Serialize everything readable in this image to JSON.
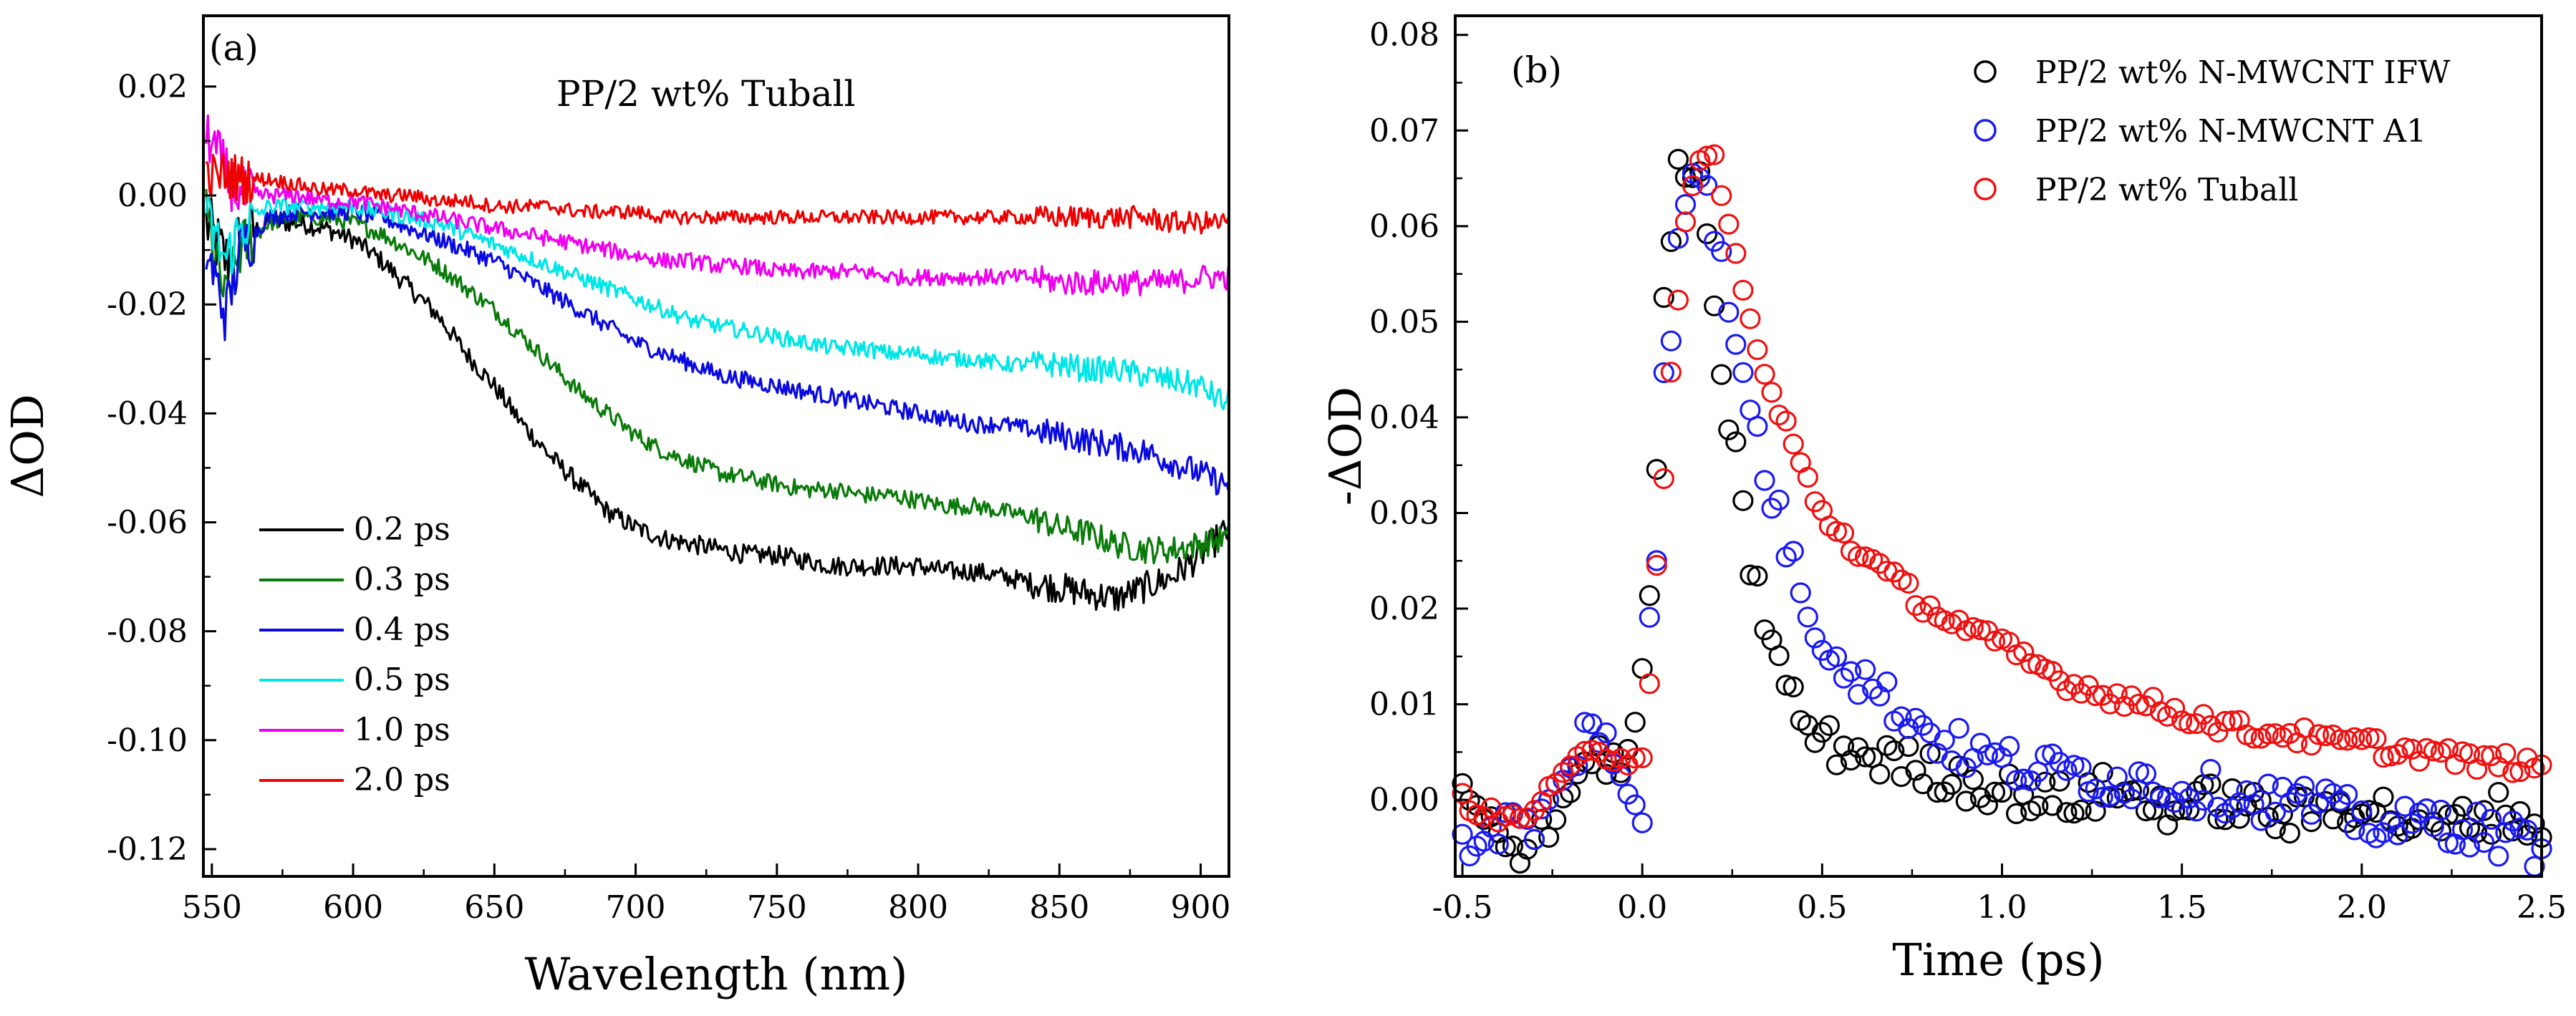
{
  "chart_data": [
    {
      "type": "line",
      "panel_label": "(a)",
      "title": "PP/2 wt% Tuball",
      "xlabel": "Wavelength (nm)",
      "ylabel": "ΔOD",
      "xlim": [
        547,
        910
      ],
      "ylim": [
        -0.125,
        0.033
      ],
      "x_ticks": [
        550,
        600,
        650,
        700,
        750,
        800,
        850,
        900
      ],
      "x_tick_labels": [
        "550",
        "600",
        "650",
        "700",
        "750",
        "800",
        "850",
        "900"
      ],
      "y_ticks": [
        0.02,
        0.0,
        -0.02,
        -0.04,
        -0.06,
        -0.08,
        -0.1,
        -0.12
      ],
      "y_tick_labels": [
        "0.02",
        "0.00",
        "-0.02",
        "-0.04",
        "-0.06",
        "-0.08",
        "-0.10",
        "-0.12"
      ],
      "grid": false,
      "legend_position": "bottom-left",
      "series": [
        {
          "name": "0.2 ps",
          "color": "#000000",
          "x": [
            548,
            555,
            560,
            570,
            580,
            590,
            600,
            610,
            620,
            630,
            640,
            650,
            660,
            670,
            680,
            690,
            700,
            710,
            720,
            730,
            740,
            750,
            760,
            770,
            780,
            790,
            800,
            810,
            820,
            830,
            840,
            850,
            860,
            870,
            880,
            890,
            900,
            908
          ],
          "y": [
            -0.005,
            -0.012,
            -0.008,
            -0.005,
            -0.005,
            -0.006,
            -0.008,
            -0.012,
            -0.017,
            -0.022,
            -0.029,
            -0.035,
            -0.042,
            -0.048,
            -0.053,
            -0.058,
            -0.061,
            -0.063,
            -0.064,
            -0.065,
            -0.066,
            -0.066,
            -0.067,
            -0.068,
            -0.068,
            -0.068,
            -0.068,
            -0.069,
            -0.069,
            -0.07,
            -0.071,
            -0.072,
            -0.073,
            -0.074,
            -0.072,
            -0.07,
            -0.066,
            -0.062
          ]
        },
        {
          "name": "0.3 ps",
          "color": "#0a7a0a",
          "x": [
            548,
            555,
            560,
            570,
            580,
            590,
            600,
            610,
            620,
            630,
            640,
            650,
            660,
            670,
            680,
            690,
            700,
            710,
            720,
            730,
            740,
            750,
            760,
            770,
            780,
            790,
            800,
            810,
            820,
            830,
            840,
            850,
            860,
            870,
            880,
            890,
            900,
            908
          ],
          "y": [
            -0.004,
            -0.02,
            -0.01,
            -0.005,
            -0.004,
            -0.004,
            -0.005,
            -0.007,
            -0.01,
            -0.013,
            -0.017,
            -0.021,
            -0.026,
            -0.031,
            -0.036,
            -0.04,
            -0.044,
            -0.047,
            -0.049,
            -0.051,
            -0.052,
            -0.053,
            -0.054,
            -0.054,
            -0.055,
            -0.055,
            -0.056,
            -0.057,
            -0.057,
            -0.058,
            -0.059,
            -0.061,
            -0.062,
            -0.064,
            -0.065,
            -0.065,
            -0.064,
            -0.063
          ]
        },
        {
          "name": "0.4 ps",
          "color": "#0a0ae0",
          "x": [
            548,
            555,
            560,
            570,
            580,
            590,
            600,
            610,
            620,
            630,
            640,
            650,
            660,
            670,
            680,
            690,
            700,
            710,
            720,
            730,
            740,
            750,
            760,
            770,
            780,
            790,
            800,
            810,
            820,
            830,
            840,
            850,
            860,
            870,
            880,
            890,
            900,
            908
          ],
          "y": [
            -0.01,
            -0.022,
            -0.01,
            -0.004,
            -0.003,
            -0.003,
            -0.003,
            -0.004,
            -0.006,
            -0.008,
            -0.01,
            -0.012,
            -0.015,
            -0.018,
            -0.021,
            -0.024,
            -0.027,
            -0.029,
            -0.031,
            -0.033,
            -0.034,
            -0.035,
            -0.036,
            -0.037,
            -0.038,
            -0.039,
            -0.04,
            -0.041,
            -0.042,
            -0.042,
            -0.043,
            -0.044,
            -0.045,
            -0.046,
            -0.047,
            -0.049,
            -0.051,
            -0.053
          ]
        },
        {
          "name": "0.5 ps",
          "color": "#00e6e6",
          "x": [
            548,
            555,
            560,
            570,
            580,
            590,
            600,
            610,
            620,
            630,
            640,
            650,
            660,
            670,
            680,
            690,
            700,
            710,
            720,
            730,
            740,
            750,
            760,
            770,
            780,
            790,
            800,
            810,
            820,
            830,
            840,
            850,
            860,
            870,
            880,
            890,
            900,
            908
          ],
          "y": [
            -0.004,
            -0.012,
            -0.006,
            -0.002,
            -0.002,
            -0.002,
            -0.002,
            -0.003,
            -0.004,
            -0.005,
            -0.007,
            -0.009,
            -0.011,
            -0.013,
            -0.015,
            -0.017,
            -0.019,
            -0.021,
            -0.023,
            -0.024,
            -0.025,
            -0.026,
            -0.027,
            -0.028,
            -0.028,
            -0.029,
            -0.029,
            -0.03,
            -0.03,
            -0.031,
            -0.031,
            -0.031,
            -0.032,
            -0.032,
            -0.033,
            -0.034,
            -0.035,
            -0.038
          ]
        },
        {
          "name": "1.0 ps",
          "color": "#ee00ee",
          "x": [
            548,
            555,
            560,
            570,
            580,
            590,
            600,
            610,
            620,
            630,
            640,
            650,
            660,
            670,
            680,
            690,
            700,
            710,
            720,
            730,
            740,
            750,
            760,
            770,
            780,
            790,
            800,
            810,
            820,
            830,
            840,
            850,
            860,
            870,
            880,
            890,
            900,
            908
          ],
          "y": [
            0.012,
            0.004,
            0.0,
            0.0,
            0.0,
            -0.001,
            -0.001,
            -0.002,
            -0.003,
            -0.004,
            -0.005,
            -0.006,
            -0.007,
            -0.008,
            -0.009,
            -0.01,
            -0.011,
            -0.012,
            -0.012,
            -0.013,
            -0.013,
            -0.014,
            -0.014,
            -0.014,
            -0.014,
            -0.015,
            -0.015,
            -0.015,
            -0.015,
            -0.015,
            -0.015,
            -0.016,
            -0.016,
            -0.016,
            -0.016,
            -0.016,
            -0.015,
            -0.015
          ]
        },
        {
          "name": "2.0 ps",
          "color": "#ee0000",
          "x": [
            548,
            555,
            560,
            570,
            580,
            590,
            600,
            610,
            620,
            630,
            640,
            650,
            660,
            670,
            680,
            690,
            700,
            710,
            720,
            730,
            740,
            750,
            760,
            770,
            780,
            790,
            800,
            810,
            820,
            830,
            840,
            850,
            860,
            870,
            880,
            890,
            900,
            908
          ],
          "y": [
            0.003,
            0.004,
            0.003,
            0.003,
            0.002,
            0.001,
            0.001,
            0.0,
            0.0,
            -0.001,
            -0.001,
            -0.002,
            -0.002,
            -0.002,
            -0.003,
            -0.003,
            -0.003,
            -0.004,
            -0.004,
            -0.004,
            -0.004,
            -0.004,
            -0.004,
            -0.004,
            -0.004,
            -0.004,
            -0.004,
            -0.004,
            -0.004,
            -0.004,
            -0.004,
            -0.004,
            -0.004,
            -0.004,
            -0.004,
            -0.005,
            -0.005,
            -0.005
          ]
        }
      ]
    },
    {
      "type": "scatter",
      "panel_label": "(b)",
      "xlabel": "Time (ps)",
      "ylabel": "-ΔOD",
      "xlim": [
        -0.52,
        2.5
      ],
      "ylim": [
        -0.008,
        0.082
      ],
      "x_ticks": [
        -0.5,
        0.0,
        0.5,
        1.0,
        1.5,
        2.0,
        2.5
      ],
      "x_tick_labels": [
        "-0.5",
        "0.0",
        "0.5",
        "1.0",
        "1.5",
        "2.0",
        "2.5"
      ],
      "y_ticks": [
        0.0,
        0.01,
        0.02,
        0.03,
        0.04,
        0.05,
        0.06,
        0.07,
        0.08
      ],
      "y_tick_labels": [
        "0.00",
        "0.01",
        "0.02",
        "0.03",
        "0.04",
        "0.05",
        "0.06",
        "0.07",
        "0.08"
      ],
      "grid": false,
      "legend_position": "top-right",
      "series": [
        {
          "name": "PP/2 wt% N-MWCNT IFW",
          "color": "#000000",
          "x": [
            -0.5,
            -0.45,
            -0.4,
            -0.35,
            -0.3,
            -0.25,
            -0.2,
            -0.15,
            -0.1,
            -0.05,
            0.0,
            0.02,
            0.04,
            0.06,
            0.08,
            0.1,
            0.12,
            0.14,
            0.16,
            0.18,
            0.2,
            0.22,
            0.24,
            0.26,
            0.28,
            0.3,
            0.32,
            0.35,
            0.4,
            0.45,
            0.5,
            0.6,
            0.7,
            0.8,
            0.9,
            1.0,
            1.1,
            1.2,
            1.3,
            1.4,
            1.5,
            1.6,
            1.7,
            1.8,
            1.9,
            2.0,
            2.1,
            2.2,
            2.3,
            2.4,
            2.5
          ],
          "y": [
            0.001,
            -0.002,
            -0.004,
            -0.006,
            -0.003,
            -0.002,
            0.001,
            0.005,
            0.004,
            0.003,
            0.012,
            0.023,
            0.034,
            0.051,
            0.058,
            0.067,
            0.066,
            0.065,
            0.064,
            0.058,
            0.05,
            0.045,
            0.04,
            0.036,
            0.03,
            0.025,
            0.023,
            0.017,
            0.012,
            0.008,
            0.006,
            0.005,
            0.004,
            0.003,
            0.002,
            0.001,
            0.0,
            0.0,
            0.001,
            0.0,
            -0.001,
            0.0,
            -0.001,
            -0.002,
            -0.001,
            0.0,
            -0.002,
            -0.003,
            -0.002,
            -0.001,
            -0.003
          ]
        },
        {
          "name": "PP/2 wt% N-MWCNT A1",
          "color": "#1a1aee",
          "x": [
            -0.5,
            -0.45,
            -0.4,
            -0.35,
            -0.3,
            -0.25,
            -0.2,
            -0.15,
            -0.1,
            -0.05,
            0.0,
            0.02,
            0.04,
            0.06,
            0.08,
            0.1,
            0.12,
            0.14,
            0.16,
            0.18,
            0.2,
            0.22,
            0.24,
            0.26,
            0.28,
            0.3,
            0.32,
            0.35,
            0.4,
            0.45,
            0.5,
            0.6,
            0.7,
            0.8,
            0.9,
            1.0,
            1.1,
            1.2,
            1.3,
            1.4,
            1.5,
            1.6,
            1.7,
            1.8,
            1.9,
            2.0,
            2.1,
            2.2,
            2.3,
            2.4,
            2.5
          ],
          "y": [
            -0.005,
            -0.004,
            -0.003,
            -0.002,
            -0.003,
            0.0,
            0.003,
            0.008,
            0.007,
            0.0,
            -0.002,
            0.019,
            0.026,
            0.045,
            0.049,
            0.059,
            0.064,
            0.066,
            0.066,
            0.063,
            0.06,
            0.056,
            0.051,
            0.047,
            0.044,
            0.042,
            0.038,
            0.033,
            0.027,
            0.021,
            0.017,
            0.013,
            0.01,
            0.007,
            0.005,
            0.004,
            0.003,
            0.003,
            0.002,
            0.002,
            0.001,
            0.001,
            0.0,
            0.0,
            -0.001,
            -0.002,
            -0.003,
            -0.002,
            -0.003,
            -0.004,
            -0.005
          ]
        },
        {
          "name": "PP/2 wt% Tuball",
          "color": "#ee1111",
          "x": [
            -0.5,
            -0.45,
            -0.4,
            -0.35,
            -0.3,
            -0.25,
            -0.2,
            -0.15,
            -0.1,
            -0.05,
            0.0,
            0.02,
            0.04,
            0.06,
            0.08,
            0.1,
            0.12,
            0.14,
            0.16,
            0.18,
            0.2,
            0.22,
            0.24,
            0.26,
            0.28,
            0.3,
            0.32,
            0.35,
            0.4,
            0.45,
            0.5,
            0.6,
            0.7,
            0.8,
            0.9,
            1.0,
            1.1,
            1.2,
            1.3,
            1.4,
            1.5,
            1.6,
            1.7,
            1.8,
            1.9,
            2.0,
            2.1,
            2.2,
            2.3,
            2.4,
            2.5
          ],
          "y": [
            0.0,
            -0.001,
            -0.002,
            -0.002,
            -0.001,
            0.001,
            0.003,
            0.006,
            0.005,
            0.004,
            0.005,
            0.012,
            0.024,
            0.033,
            0.044,
            0.052,
            0.06,
            0.065,
            0.067,
            0.067,
            0.067,
            0.063,
            0.06,
            0.057,
            0.054,
            0.05,
            0.047,
            0.043,
            0.039,
            0.034,
            0.03,
            0.026,
            0.023,
            0.02,
            0.018,
            0.016,
            0.014,
            0.012,
            0.011,
            0.01,
            0.009,
            0.008,
            0.007,
            0.007,
            0.006,
            0.006,
            0.005,
            0.005,
            0.004,
            0.004,
            0.003
          ]
        }
      ]
    }
  ]
}
